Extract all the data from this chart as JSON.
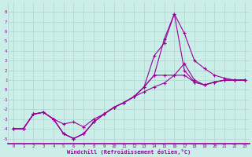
{
  "xlabel": "Windchill (Refroidissement éolien,°C)",
  "bg_color": "#cceee8",
  "grid_color": "#aad4cc",
  "line_color": "#990099",
  "x_values": [
    0,
    1,
    2,
    3,
    4,
    5,
    6,
    7,
    8,
    9,
    10,
    11,
    12,
    13,
    14,
    15,
    16,
    17,
    18,
    19,
    20,
    21,
    22,
    23
  ],
  "ylim": [
    -5.5,
    9.0
  ],
  "xlim": [
    -0.5,
    23.5
  ],
  "yticks": [
    -5,
    -4,
    -3,
    -2,
    -1,
    0,
    1,
    2,
    3,
    4,
    5,
    6,
    7,
    8
  ],
  "xticks": [
    0,
    1,
    2,
    3,
    4,
    5,
    6,
    7,
    8,
    9,
    10,
    11,
    12,
    13,
    14,
    15,
    16,
    17,
    18,
    19,
    20,
    21,
    22,
    23
  ],
  "line1": [
    -4.0,
    -4.0,
    -2.5,
    -2.3,
    -3.0,
    -4.5,
    -5.0,
    -4.5,
    -3.3,
    -2.5,
    -1.8,
    -1.3,
    -0.7,
    0.3,
    1.5,
    5.2,
    7.8,
    5.8,
    3.0,
    2.2,
    1.5,
    1.2,
    1.0,
    1.0
  ],
  "line2": [
    -4.0,
    -4.0,
    -2.5,
    -2.3,
    -3.0,
    -4.5,
    -5.0,
    -4.5,
    -3.3,
    -2.5,
    -1.8,
    -1.3,
    -0.7,
    0.3,
    3.5,
    4.8,
    7.8,
    2.0,
    0.8,
    0.5,
    0.8,
    1.0,
    1.0,
    1.0
  ],
  "line3": [
    -4.0,
    -4.0,
    -2.5,
    -2.3,
    -3.0,
    -3.5,
    -3.3,
    -3.8,
    -3.0,
    -2.5,
    -1.8,
    -1.3,
    -0.7,
    -0.2,
    0.3,
    0.7,
    1.5,
    2.7,
    1.0,
    0.5,
    0.8,
    1.0,
    1.0,
    1.0
  ],
  "line4": [
    -4.0,
    -4.0,
    -2.5,
    -2.3,
    -3.0,
    -4.5,
    -5.0,
    -4.5,
    -3.3,
    -2.5,
    -1.8,
    -1.3,
    -0.7,
    0.3,
    1.5,
    1.5,
    1.5,
    1.5,
    0.8,
    0.5,
    0.8,
    1.0,
    1.0,
    1.0
  ]
}
